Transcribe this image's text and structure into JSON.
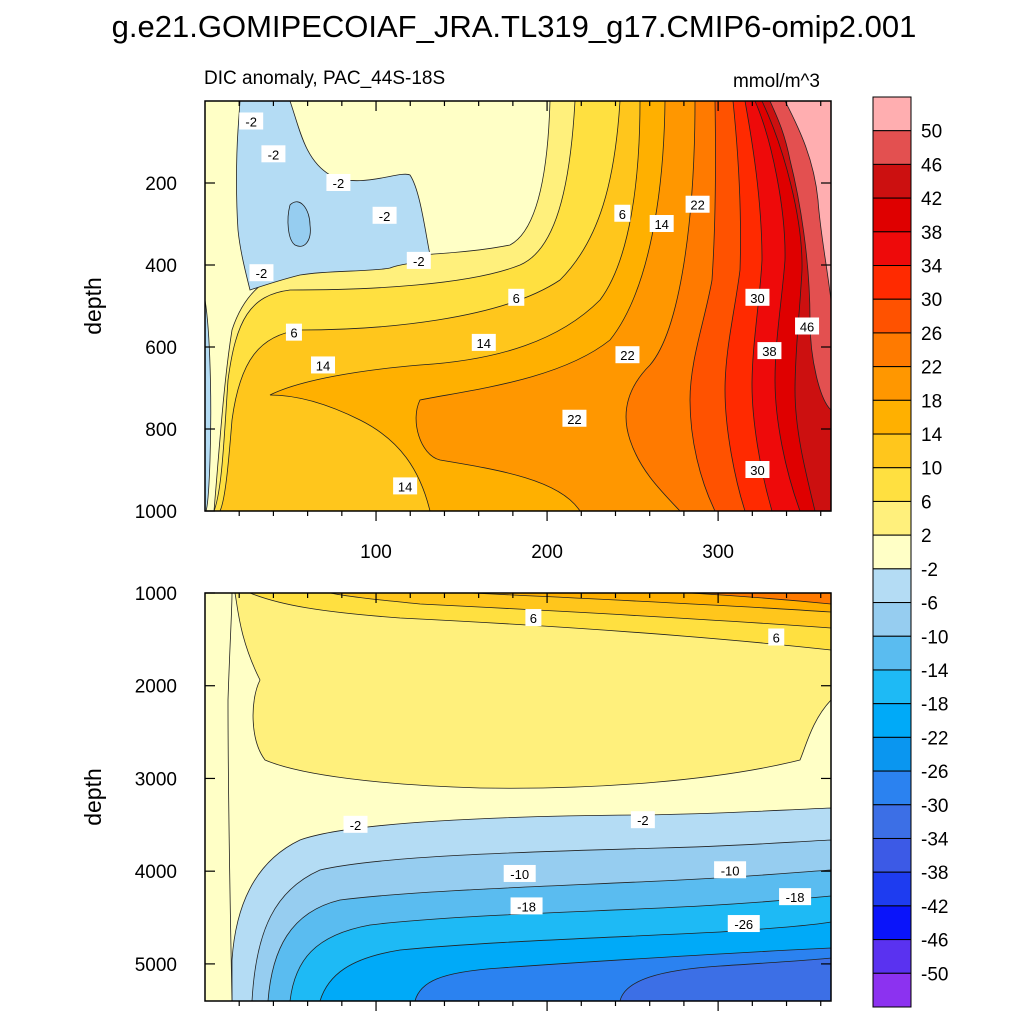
{
  "header": {
    "title": "g.e21.GOMIPECOIAF_JRA.TL319_g17.CMIP6-omip2.001"
  },
  "chart_data": [
    {
      "type": "contour",
      "panel": "upper",
      "subtitle": "DIC anomaly, PAC_44S-18S",
      "units": "mmol/m^3",
      "ylabel": "depth",
      "xlabel": "",
      "xlim": [
        0,
        366
      ],
      "ylim": [
        1000,
        0
      ],
      "xticks": [
        "100",
        "200",
        "300"
      ],
      "yticks": [
        "200",
        "400",
        "600",
        "800",
        "1000"
      ],
      "ytick_values": [
        200,
        400,
        600,
        800,
        1000
      ],
      "contour_labels": [
        {
          "text": "-2",
          "x": 27,
          "y": 50
        },
        {
          "text": "-2",
          "x": 40,
          "y": 130
        },
        {
          "text": "-2",
          "x": 78,
          "y": 200
        },
        {
          "text": "-2",
          "x": 105,
          "y": 280
        },
        {
          "text": "-2",
          "x": 125,
          "y": 390
        },
        {
          "text": "-2",
          "x": 33,
          "y": 420
        },
        {
          "text": "6",
          "x": 52,
          "y": 565
        },
        {
          "text": "14",
          "x": 69,
          "y": 645
        },
        {
          "text": "14",
          "x": 117,
          "y": 940
        },
        {
          "text": "6",
          "x": 182,
          "y": 480
        },
        {
          "text": "14",
          "x": 163,
          "y": 590
        },
        {
          "text": "6",
          "x": 244,
          "y": 275
        },
        {
          "text": "14",
          "x": 267,
          "y": 300
        },
        {
          "text": "22",
          "x": 288,
          "y": 253
        },
        {
          "text": "22",
          "x": 247,
          "y": 620
        },
        {
          "text": "22",
          "x": 216,
          "y": 775
        },
        {
          "text": "30",
          "x": 323,
          "y": 480
        },
        {
          "text": "38",
          "x": 330,
          "y": 610
        },
        {
          "text": "46",
          "x": 352,
          "y": 550
        },
        {
          "text": "30",
          "x": 323,
          "y": 900
        }
      ]
    },
    {
      "type": "contour",
      "panel": "lower",
      "ylabel": "depth",
      "xlabel": "",
      "xlim": [
        0,
        366
      ],
      "ylim": [
        5400,
        1000
      ],
      "yticks": [
        "1000",
        "2000",
        "3000",
        "4000",
        "5000"
      ],
      "ytick_values": [
        1000,
        2000,
        3000,
        4000,
        5000
      ],
      "contour_labels": [
        {
          "text": "6",
          "x": 192,
          "y": 1270
        },
        {
          "text": "6",
          "x": 334,
          "y": 1480
        },
        {
          "text": "-2",
          "x": 88,
          "y": 3500
        },
        {
          "text": "-2",
          "x": 256,
          "y": 3450
        },
        {
          "text": "-10",
          "x": 184,
          "y": 4030
        },
        {
          "text": "-10",
          "x": 307,
          "y": 3990
        },
        {
          "text": "-18",
          "x": 188,
          "y": 4380
        },
        {
          "text": "-18",
          "x": 345,
          "y": 4280
        },
        {
          "text": "-26",
          "x": 315,
          "y": 4570
        }
      ]
    },
    {
      "type": "colorbar",
      "labels": [
        "50",
        "46",
        "42",
        "38",
        "34",
        "30",
        "26",
        "22",
        "18",
        "14",
        "10",
        "6",
        "2",
        "-2",
        "-6",
        "-10",
        "-14",
        "-18",
        "-22",
        "-26",
        "-30",
        "-34",
        "-38",
        "-42",
        "-46",
        "-50"
      ],
      "colors": [
        "#ffaeb0",
        "#e35050",
        "#cc1010",
        "#df0000",
        "#ee0a0a",
        "#ff2a00",
        "#ff5200",
        "#ff7a00",
        "#ff9700",
        "#ffb000",
        "#ffc61c",
        "#ffe040",
        "#fff07c",
        "#ffffc6",
        "#b4dcf4",
        "#96cdf0",
        "#5abcf0",
        "#1ebaf5",
        "#00aaf8",
        "#0a96f0",
        "#2b82f0",
        "#3c6fe6",
        "#3c5ae6",
        "#1e3cf0",
        "#0a14fa",
        "#5a32f0",
        "#8c32f0"
      ]
    }
  ]
}
